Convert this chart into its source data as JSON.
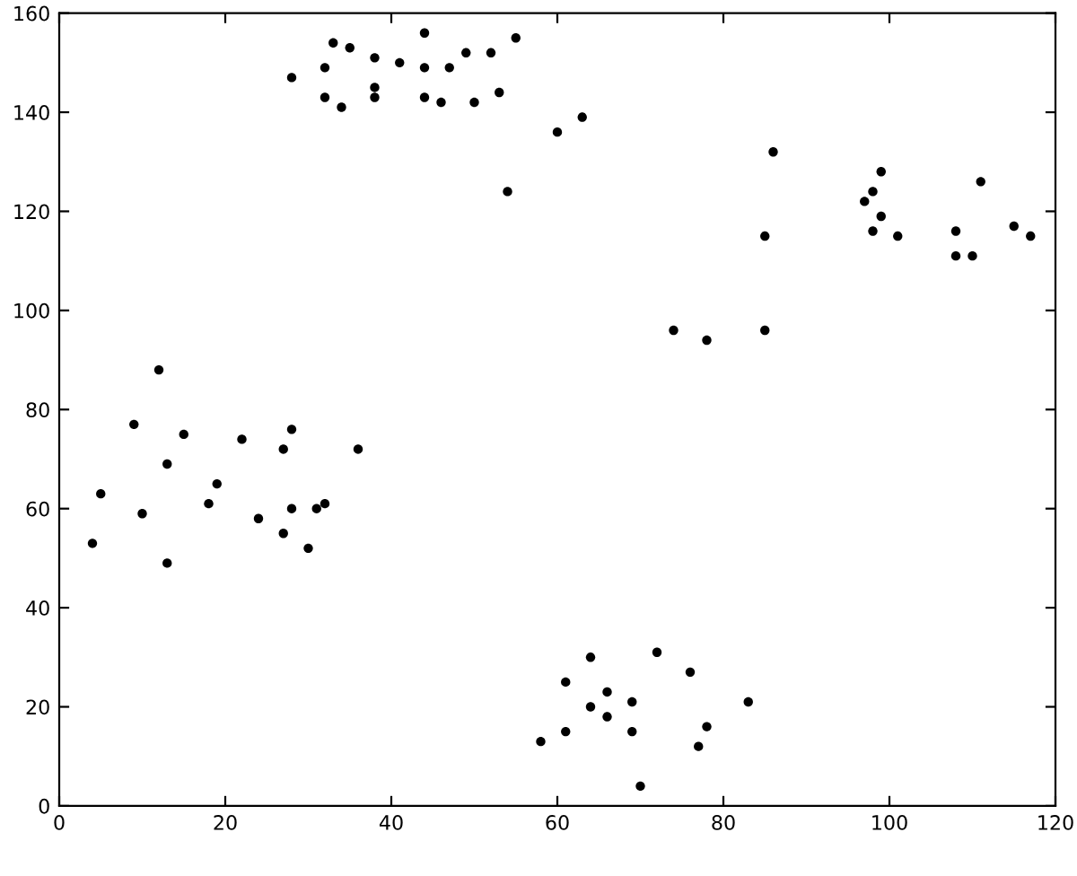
{
  "chart_data": {
    "type": "scatter",
    "marker": "circle",
    "grid": false,
    "xlim": [
      0,
      120
    ],
    "ylim": [
      0,
      160
    ],
    "xticks": [
      0,
      20,
      40,
      60,
      80,
      100,
      120
    ],
    "yticks": [
      0,
      20,
      40,
      60,
      80,
      100,
      120,
      140,
      160
    ],
    "series": [
      {
        "color": "#000000",
        "x": [
          28,
          32,
          32,
          33,
          34,
          35,
          38,
          38,
          38,
          41,
          44,
          44,
          44,
          46,
          47,
          49,
          50,
          52,
          53,
          54,
          55,
          60,
          63,
          4,
          5,
          9,
          10,
          12,
          13,
          13,
          15,
          18,
          19,
          22,
          24,
          27,
          27,
          28,
          28,
          30,
          31,
          32,
          36,
          58,
          61,
          61,
          64,
          64,
          66,
          66,
          69,
          69,
          70,
          72,
          76,
          77,
          78,
          83,
          74,
          78,
          85,
          85,
          86,
          97,
          98,
          98,
          99,
          99,
          101,
          108,
          108,
          110,
          111,
          115,
          117
        ],
        "values": [
          147,
          149,
          143,
          154,
          141,
          153,
          151,
          145,
          143,
          150,
          156,
          149,
          143,
          142,
          149,
          152,
          142,
          152,
          144,
          124,
          155,
          136,
          139,
          53,
          63,
          77,
          59,
          88,
          69,
          49,
          75,
          61,
          65,
          74,
          58,
          55,
          72,
          76,
          60,
          52,
          60,
          61,
          72,
          13,
          25,
          15,
          30,
          20,
          23,
          18,
          21,
          15,
          4,
          31,
          27,
          12,
          16,
          21,
          96,
          94,
          115,
          96,
          132,
          122,
          124,
          116,
          128,
          119,
          115,
          116,
          111,
          111,
          126,
          117,
          115
        ]
      }
    ]
  }
}
